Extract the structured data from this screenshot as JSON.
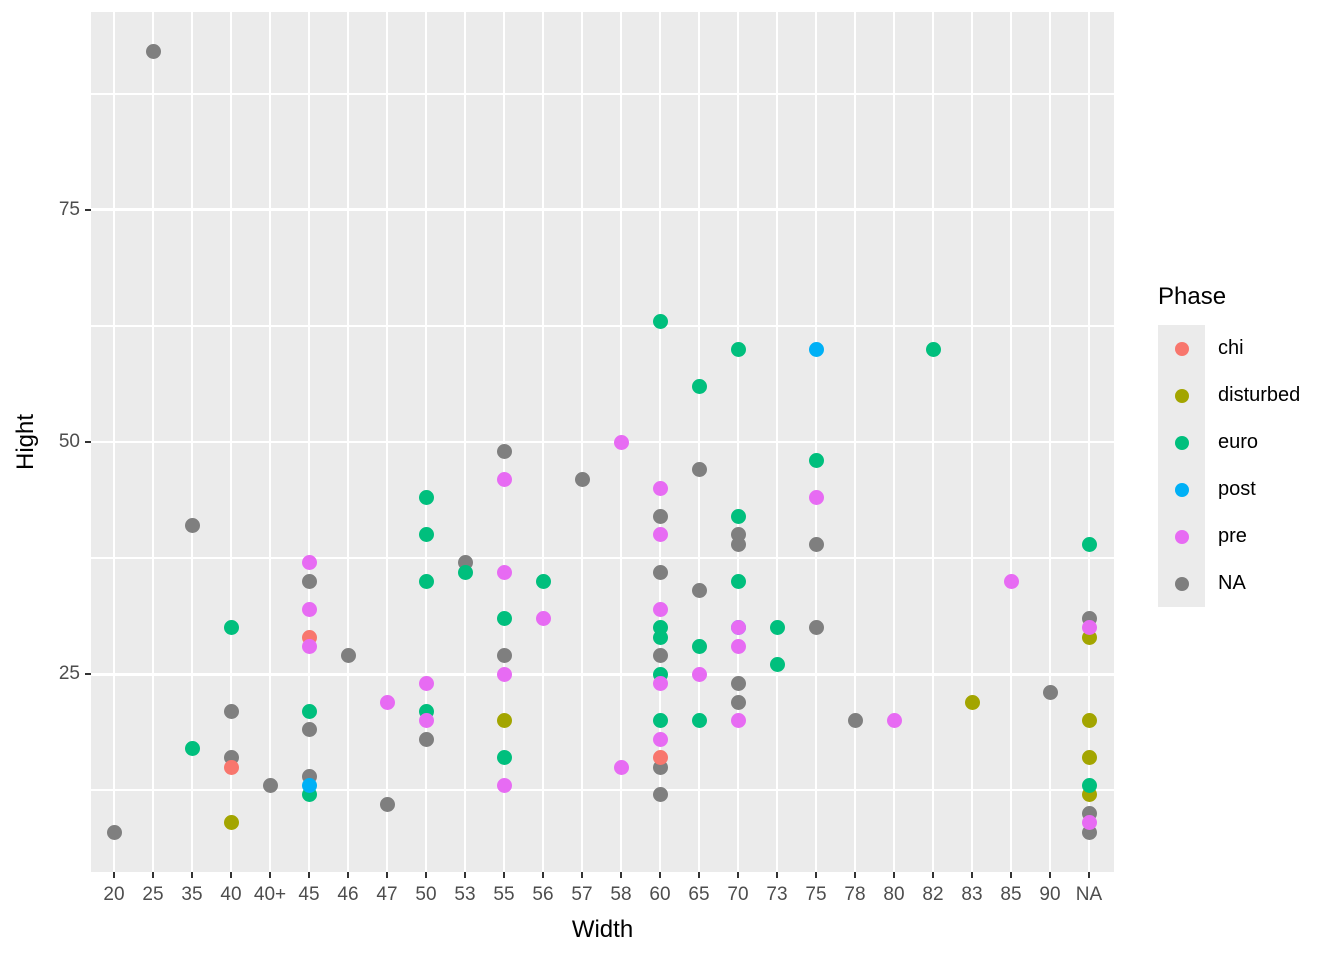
{
  "chart_data": {
    "type": "scatter",
    "title": "",
    "xlabel": "Width",
    "ylabel": "Hight",
    "x_type": "categorical",
    "categories": [
      "20",
      "25",
      "35",
      "40",
      "40+",
      "45",
      "46",
      "47",
      "50",
      "53",
      "55",
      "56",
      "57",
      "58",
      "60",
      "65",
      "70",
      "73",
      "75",
      "78",
      "80",
      "82",
      "83",
      "85",
      "90",
      "NA"
    ],
    "y_ticks": [
      25,
      50,
      75
    ],
    "y_minor_gridlines": [
      12.5,
      37.5,
      62.5,
      87.5
    ],
    "ylim": [
      3.7,
      96.3
    ],
    "grid": "major-and-minor, white on gray panel",
    "legend_position": "right",
    "legend_title": "Phase",
    "series": [
      {
        "name": "chi",
        "color": "#F8766D",
        "points": [
          [
            "40",
            15
          ],
          [
            "45",
            29
          ],
          [
            "60",
            16
          ]
        ]
      },
      {
        "name": "disturbed",
        "color": "#A3A500",
        "points": [
          [
            "40",
            9
          ],
          [
            "55",
            20
          ],
          [
            "83",
            22
          ],
          [
            "NA",
            29
          ],
          [
            "NA",
            20
          ],
          [
            "NA",
            16
          ],
          [
            "NA",
            12
          ]
        ]
      },
      {
        "name": "euro",
        "color": "#00BF7D",
        "points": [
          [
            "35",
            17
          ],
          [
            "40",
            30
          ],
          [
            "45",
            21
          ],
          [
            "45",
            12
          ],
          [
            "50",
            44
          ],
          [
            "50",
            40
          ],
          [
            "50",
            35
          ],
          [
            "50",
            21
          ],
          [
            "53",
            36
          ],
          [
            "55",
            31
          ],
          [
            "55",
            16
          ],
          [
            "56",
            35
          ],
          [
            "60",
            63
          ],
          [
            "60",
            30
          ],
          [
            "60",
            29
          ],
          [
            "60",
            25
          ],
          [
            "60",
            20
          ],
          [
            "65",
            56
          ],
          [
            "65",
            28
          ],
          [
            "65",
            20
          ],
          [
            "70",
            60
          ],
          [
            "70",
            42
          ],
          [
            "70",
            35
          ],
          [
            "73",
            30
          ],
          [
            "73",
            26
          ],
          [
            "75",
            48
          ],
          [
            "82",
            60
          ],
          [
            "NA",
            39
          ],
          [
            "NA",
            13
          ]
        ]
      },
      {
        "name": "post",
        "color": "#00B0F6",
        "points": [
          [
            "45",
            13
          ],
          [
            "70",
            30
          ],
          [
            "75",
            60
          ]
        ]
      },
      {
        "name": "pre",
        "color": "#E76BF3",
        "points": [
          [
            "45",
            37
          ],
          [
            "45",
            32
          ],
          [
            "45",
            28
          ],
          [
            "47",
            22
          ],
          [
            "50",
            24
          ],
          [
            "50",
            20
          ],
          [
            "55",
            46
          ],
          [
            "55",
            36
          ],
          [
            "55",
            25
          ],
          [
            "55",
            13
          ],
          [
            "56",
            31
          ],
          [
            "58",
            50
          ],
          [
            "58",
            15
          ],
          [
            "60",
            45
          ],
          [
            "60",
            40
          ],
          [
            "60",
            32
          ],
          [
            "60",
            24
          ],
          [
            "60",
            18
          ],
          [
            "65",
            25
          ],
          [
            "70",
            30
          ],
          [
            "70",
            28
          ],
          [
            "70",
            20
          ],
          [
            "75",
            44
          ],
          [
            "80",
            20
          ],
          [
            "85",
            35
          ],
          [
            "NA",
            30
          ],
          [
            "NA",
            9
          ]
        ]
      },
      {
        "name": "NA",
        "color": "#7F7F7F",
        "points": [
          [
            "20",
            8
          ],
          [
            "25",
            92
          ],
          [
            "35",
            41
          ],
          [
            "40",
            21
          ],
          [
            "40",
            16
          ],
          [
            "40+",
            13
          ],
          [
            "45",
            35
          ],
          [
            "45",
            19
          ],
          [
            "45",
            14
          ],
          [
            "46",
            27
          ],
          [
            "47",
            11
          ],
          [
            "50",
            18
          ],
          [
            "53",
            37
          ],
          [
            "55",
            49
          ],
          [
            "55",
            27
          ],
          [
            "57",
            46
          ],
          [
            "60",
            42
          ],
          [
            "60",
            36
          ],
          [
            "60",
            27
          ],
          [
            "60",
            15
          ],
          [
            "60",
            12
          ],
          [
            "65",
            47
          ],
          [
            "65",
            34
          ],
          [
            "70",
            40
          ],
          [
            "70",
            39
          ],
          [
            "70",
            24
          ],
          [
            "70",
            22
          ],
          [
            "75",
            39
          ],
          [
            "75",
            30
          ],
          [
            "78",
            20
          ],
          [
            "90",
            23
          ],
          [
            "NA",
            31
          ],
          [
            "NA",
            10
          ],
          [
            "NA",
            8
          ]
        ]
      }
    ],
    "colors": {
      "panel_background": "#EBEBEB",
      "gridline": "#FFFFFF",
      "tick_label": "#4D4D4D",
      "axis_title": "#000000"
    }
  },
  "legend": {
    "title": "Phase",
    "entries": [
      {
        "label": "chi",
        "color": "#F8766D"
      },
      {
        "label": "disturbed",
        "color": "#A3A500"
      },
      {
        "label": "euro",
        "color": "#00BF7D"
      },
      {
        "label": "post",
        "color": "#00B0F6"
      },
      {
        "label": "pre",
        "color": "#E76BF3"
      },
      {
        "label": "NA",
        "color": "#7F7F7F"
      }
    ]
  }
}
